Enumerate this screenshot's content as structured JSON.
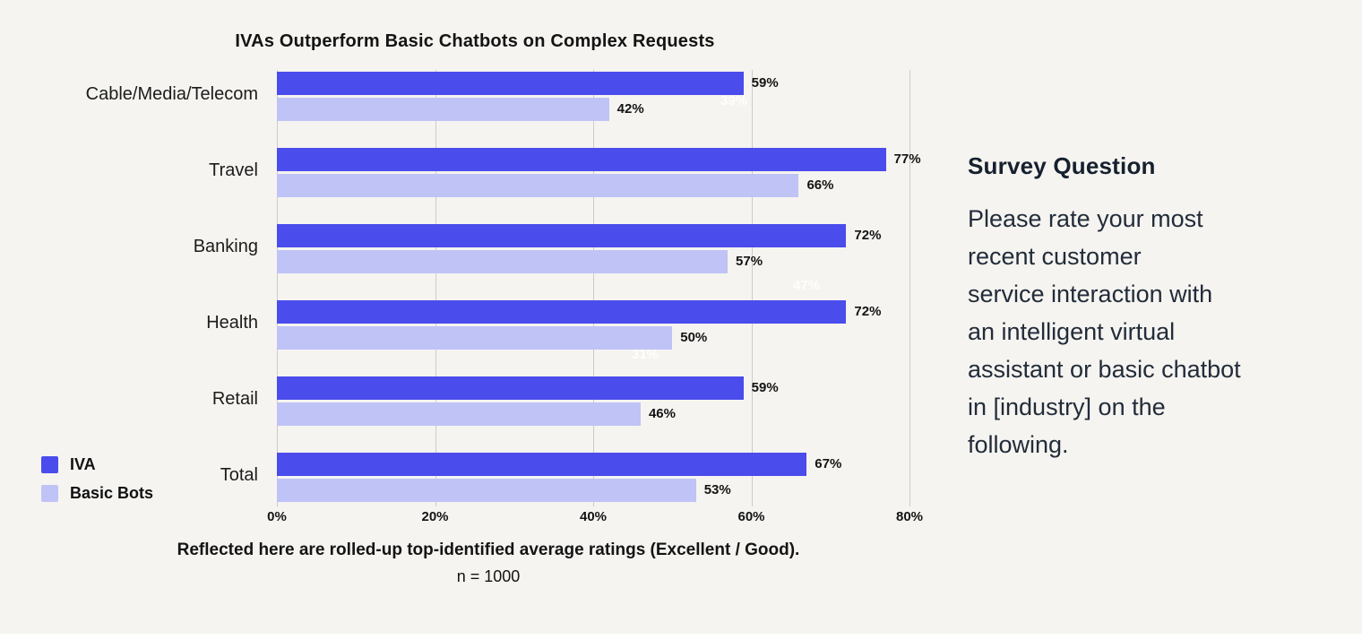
{
  "page": {
    "background": "#F5F4F0"
  },
  "chart_data": {
    "type": "bar",
    "orientation": "horizontal",
    "title": "IVAs Outperform Basic Chatbots on Complex Requests",
    "categories": [
      "Cable/Media/Telecom",
      "Travel",
      "Banking",
      "Health",
      "Retail",
      "Total"
    ],
    "series": [
      {
        "name": "IVA",
        "color": "#4B4CEC",
        "values": [
          59,
          77,
          72,
          72,
          59,
          67
        ]
      },
      {
        "name": "Basic Bots",
        "color": "#C0C3F6",
        "values": [
          42,
          66,
          57,
          50,
          46,
          53
        ]
      }
    ],
    "value_suffix": "%",
    "xlim": [
      0,
      80
    ],
    "x_ticks": [
      {
        "label": "0%",
        "value": 0
      },
      {
        "label": "20%",
        "value": 20
      },
      {
        "label": "40%",
        "value": 40
      },
      {
        "label": "60%",
        "value": 60
      },
      {
        "label": "80%",
        "value": 80
      }
    ],
    "grid": true,
    "legend_position": "bottom-left",
    "ghost_labels": [
      {
        "text": "39%",
        "left": 495,
        "top": 26
      },
      {
        "text": "47%",
        "left": 576,
        "top": 232
      },
      {
        "text": "31%",
        "left": 396,
        "top": 309
      }
    ]
  },
  "footnote": {
    "line1": "Reflected here are rolled-up top-identified average ratings (Excellent / Good).",
    "line2": "n = 1000"
  },
  "survey": {
    "heading": "Survey Question",
    "body": "Please rate your most\nrecent customer\nservice interaction with\nan intelligent virtual\nassistant or basic chatbot\nin [industry] on the\nfollowing."
  }
}
